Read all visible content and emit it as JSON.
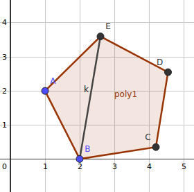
{
  "chart_data": {
    "type": "polygon",
    "points": [
      {
        "label": "A",
        "x": 1,
        "y": 2,
        "color": "#4d4dff"
      },
      {
        "label": "B",
        "x": 2,
        "y": 0,
        "color": "#4d4dff"
      },
      {
        "label": "C",
        "x": 4.2,
        "y": 0.35,
        "color": "#333333"
      },
      {
        "label": "D",
        "x": 4.55,
        "y": 2.55,
        "color": "#333333"
      },
      {
        "label": "E",
        "x": 2.6,
        "y": 3.6,
        "color": "#333333"
      }
    ],
    "polygon_label": "poly1",
    "color": "#993300",
    "segment": {
      "label": "k",
      "from": "B",
      "to": "E",
      "color": "#444444"
    },
    "xlim": [
      -0.3,
      5.3
    ],
    "ylim": [
      -0.97,
      4.67
    ],
    "xticks": [
      0,
      1,
      2,
      3,
      4,
      5
    ],
    "yticks": [
      0,
      1,
      2,
      3,
      4
    ],
    "grid": true
  }
}
